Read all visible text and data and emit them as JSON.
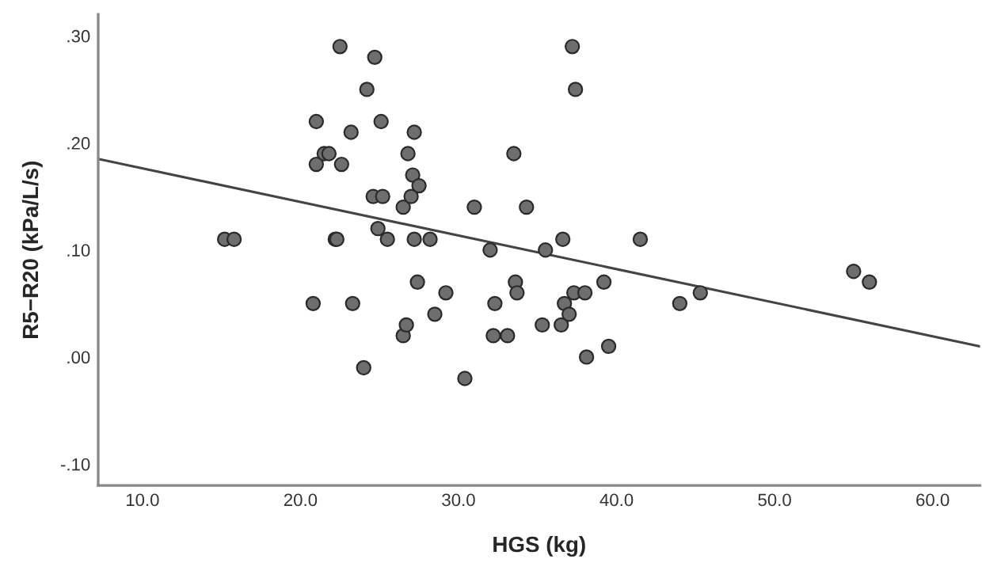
{
  "chart_data": {
    "type": "scatter",
    "xlabel": "HGS (kg)",
    "ylabel": "R5−R20 (kPa/L/s)",
    "xlim": [
      7.2,
      63
    ],
    "ylim": [
      -0.12,
      0.32
    ],
    "xticks": [
      {
        "value": 10,
        "label": "10.0"
      },
      {
        "value": 20,
        "label": "20.0"
      },
      {
        "value": 30,
        "label": "30.0"
      },
      {
        "value": 40,
        "label": "40.0"
      },
      {
        "value": 50,
        "label": "50.0"
      },
      {
        "value": 60,
        "label": "60.0"
      }
    ],
    "yticks": [
      {
        "value": -0.1,
        "label": "-.10"
      },
      {
        "value": 0,
        "label": ".00"
      },
      {
        "value": 0.1,
        "label": ".10"
      },
      {
        "value": 0.2,
        "label": ".20"
      },
      {
        "value": 0.3,
        "label": ".30"
      }
    ],
    "grid": false,
    "legend": false,
    "series": [
      {
        "marker": "circle",
        "color": "#6e6e6e",
        "x": [
          15.2,
          15.8,
          20.8,
          21,
          21,
          21.5,
          21.8,
          22.2,
          22.3,
          22.5,
          22.6,
          23.2,
          23.3,
          24,
          24.2,
          24.6,
          24.7,
          24.9,
          25.1,
          25.2,
          25.5,
          26.5,
          26.5,
          26.7,
          26.8,
          27,
          27.1,
          27.2,
          27.2,
          27.4,
          27.5,
          28.2,
          28.5,
          29.2,
          30.4,
          31,
          32,
          32.2,
          32.3,
          33.1,
          33.5,
          33.6,
          33.7,
          34.3,
          35.3,
          35.5,
          36.5,
          36.6,
          36.7,
          37,
          37.2,
          37.3,
          37.4,
          38,
          38.1,
          39.2,
          39.5,
          41.5,
          44,
          45.3,
          55,
          56
        ],
        "values": [
          0.11,
          0.11,
          0.05,
          0.18,
          0.22,
          0.19,
          0.19,
          0.11,
          0.11,
          0.29,
          0.18,
          0.21,
          0.05,
          -0.01,
          0.25,
          0.15,
          0.28,
          0.12,
          0.22,
          0.15,
          0.11,
          0.14,
          0.02,
          0.03,
          0.19,
          0.15,
          0.17,
          0.11,
          0.21,
          0.07,
          0.16,
          0.11,
          0.04,
          0.06,
          -0.02,
          0.14,
          0.1,
          0.02,
          0.05,
          0.02,
          0.19,
          0.07,
          0.06,
          0.14,
          0.03,
          0.1,
          0.03,
          0.11,
          0.05,
          0.04,
          0.29,
          0.06,
          0.25,
          0.06,
          0.0,
          0.07,
          0.01,
          0.11,
          0.05,
          0.06,
          0.08,
          0.07
        ]
      },
      {
        "type": "line",
        "marker": "none",
        "color": "#444444",
        "x": [
          7.2,
          63
        ],
        "values": [
          0.185,
          0.01
        ]
      }
    ]
  }
}
